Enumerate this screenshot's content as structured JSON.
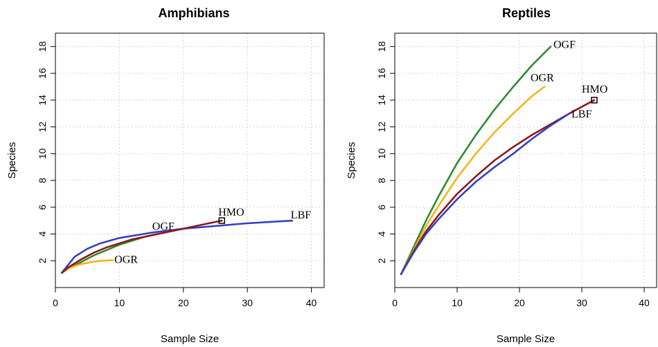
{
  "chart_data": [
    {
      "type": "line",
      "title": "Amphibians",
      "xlabel": "Sample Size",
      "ylabel": "Species",
      "xlim": [
        0,
        42
      ],
      "ylim": [
        0,
        19
      ],
      "xticks": [
        0,
        10,
        20,
        30,
        40
      ],
      "yticks": [
        2,
        4,
        6,
        8,
        10,
        12,
        14,
        16,
        18
      ],
      "grid": true,
      "series": [
        {
          "name": "LBF",
          "color": "#3340c4",
          "x": [
            1,
            2,
            3,
            5,
            7,
            10,
            15,
            20,
            25,
            30,
            37
          ],
          "y": [
            1.1,
            1.7,
            2.3,
            2.9,
            3.3,
            3.7,
            4.1,
            4.4,
            4.6,
            4.8,
            5.0
          ]
        },
        {
          "name": "OGF",
          "color": "#2e8b2e",
          "x": [
            1,
            2,
            4,
            6,
            8,
            10,
            12,
            14,
            16
          ],
          "y": [
            1.1,
            1.4,
            1.9,
            2.4,
            2.8,
            3.2,
            3.5,
            3.8,
            4.0
          ]
        },
        {
          "name": "OGR",
          "color": "#f4b41a",
          "x": [
            1,
            2,
            3,
            4,
            5,
            6,
            7,
            8,
            9
          ],
          "y": [
            1.1,
            1.4,
            1.6,
            1.75,
            1.85,
            1.93,
            2.0,
            2.02,
            2.05
          ]
        },
        {
          "name": "HMO",
          "color": "#8b1a1a",
          "x": [
            1,
            2,
            4,
            6,
            8,
            10,
            12,
            15,
            18,
            20,
            22,
            24,
            26
          ],
          "y": [
            1.1,
            1.5,
            2.1,
            2.6,
            3.0,
            3.3,
            3.6,
            3.9,
            4.2,
            4.4,
            4.6,
            4.8,
            5.0
          ]
        }
      ],
      "markers": [
        {
          "name": "HMO",
          "x": 26,
          "y": 5.0
        }
      ]
    },
    {
      "type": "line",
      "title": "Reptiles",
      "xlabel": "Sample Size",
      "ylabel": "Species",
      "xlim": [
        0,
        42
      ],
      "ylim": [
        0,
        19
      ],
      "xticks": [
        0,
        10,
        20,
        30,
        40
      ],
      "yticks": [
        2,
        4,
        6,
        8,
        10,
        12,
        14,
        16,
        18
      ],
      "grid": true,
      "series": [
        {
          "name": "OGF",
          "color": "#2e8b2e",
          "x": [
            1,
            3,
            5,
            7,
            10,
            13,
            16,
            19,
            22,
            25
          ],
          "y": [
            1.0,
            3.0,
            5.0,
            6.8,
            9.3,
            11.4,
            13.3,
            15.0,
            16.6,
            18.0
          ]
        },
        {
          "name": "OGR",
          "color": "#f4b41a",
          "x": [
            1,
            3,
            5,
            7,
            10,
            13,
            16,
            19,
            22,
            24
          ],
          "y": [
            1.0,
            2.8,
            4.6,
            6.1,
            8.2,
            10.0,
            11.6,
            13.0,
            14.3,
            15.0
          ]
        },
        {
          "name": "HMO",
          "color": "#8b1a1a",
          "x": [
            1,
            3,
            5,
            7,
            10,
            13,
            16,
            19,
            22,
            25,
            28,
            32
          ],
          "y": [
            1.0,
            2.7,
            4.2,
            5.4,
            7.0,
            8.3,
            9.5,
            10.5,
            11.4,
            12.2,
            13.0,
            14.0
          ]
        },
        {
          "name": "LBF",
          "color": "#3340c4",
          "x": [
            1,
            3,
            5,
            7,
            10,
            13,
            16,
            19,
            22,
            25,
            28
          ],
          "y": [
            1.0,
            2.6,
            4.0,
            5.1,
            6.6,
            7.9,
            9.0,
            10.0,
            11.1,
            12.1,
            13.0
          ]
        }
      ],
      "markers": [
        {
          "name": "HMO",
          "x": 32,
          "y": 14.0
        }
      ]
    }
  ]
}
